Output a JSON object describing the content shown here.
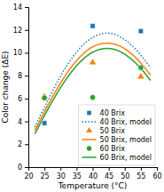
{
  "chart_data": {
    "type": "line",
    "xlabel": "Temperature (°C)",
    "ylabel": "Color change (ΔE)",
    "xlim": [
      20,
      60
    ],
    "ylim": [
      0,
      14
    ],
    "xticks": [
      20,
      25,
      30,
      35,
      40,
      45,
      50,
      55,
      60
    ],
    "yticks": [
      0,
      2,
      4,
      6,
      8,
      10,
      12,
      14
    ],
    "grid": false,
    "legend": "lower right",
    "series": [
      {
        "name": "40 Brix",
        "type": "scatter",
        "marker": "square",
        "color": "#1f77b4",
        "x": [
          25,
          40,
          55
        ],
        "values": [
          3.85,
          12.35,
          11.9
        ]
      },
      {
        "name": "40 Brix, model",
        "type": "line",
        "line_style": "dotted",
        "color": "#1f77b4",
        "x": [
          22,
          23,
          24,
          25,
          26,
          27,
          28,
          29,
          30,
          31,
          32,
          33,
          34,
          35,
          36,
          37,
          38,
          39,
          40,
          41,
          42,
          43,
          44,
          45,
          46,
          47,
          48,
          49,
          50,
          51,
          52,
          53,
          54,
          55,
          56,
          57,
          58
        ],
        "values": [
          3.5,
          4.1,
          4.7,
          5.2,
          5.8,
          6.35,
          6.9,
          7.45,
          7.95,
          8.45,
          8.9,
          9.3,
          9.7,
          10.05,
          10.4,
          10.7,
          10.95,
          11.15,
          11.35,
          11.5,
          11.6,
          11.68,
          11.72,
          11.72,
          11.68,
          11.6,
          11.48,
          11.33,
          11.15,
          10.95,
          10.7,
          10.43,
          10.13,
          9.8,
          9.45,
          9.08,
          8.68
        ]
      },
      {
        "name": "50 Brix",
        "type": "scatter",
        "marker": "triangle",
        "color": "#ff7f0e",
        "x": [
          25,
          40,
          55
        ],
        "values": [
          6.15,
          9.15,
          7.9
        ]
      },
      {
        "name": "50 Brix, model",
        "type": "line",
        "line_style": "solid",
        "color": "#ff7f0e",
        "x": [
          22,
          23,
          24,
          25,
          26,
          27,
          28,
          29,
          30,
          31,
          32,
          33,
          34,
          35,
          36,
          37,
          38,
          39,
          40,
          41,
          42,
          43,
          44,
          45,
          46,
          47,
          48,
          49,
          50,
          51,
          52,
          53,
          54,
          55,
          56,
          57,
          58
        ],
        "values": [
          3.2,
          3.75,
          4.3,
          4.85,
          5.38,
          5.9,
          6.4,
          6.88,
          7.35,
          7.8,
          8.22,
          8.62,
          8.98,
          9.32,
          9.63,
          9.9,
          10.15,
          10.35,
          10.52,
          10.65,
          10.75,
          10.82,
          10.85,
          10.85,
          10.82,
          10.75,
          10.65,
          10.52,
          10.35,
          10.16,
          9.93,
          9.68,
          9.4,
          9.1,
          8.77,
          8.42,
          8.05
        ]
      },
      {
        "name": "60 Brix",
        "type": "scatter",
        "marker": "circle",
        "color": "#2ca02c",
        "x": [
          25,
          40,
          55
        ],
        "values": [
          6.05,
          6.1,
          8.7
        ]
      },
      {
        "name": "60 Brix, model",
        "type": "line",
        "line_style": "solid",
        "color": "#2ca02c",
        "x": [
          22,
          23,
          24,
          25,
          26,
          27,
          28,
          29,
          30,
          31,
          32,
          33,
          34,
          35,
          36,
          37,
          38,
          39,
          40,
          41,
          42,
          43,
          44,
          45,
          46,
          47,
          48,
          49,
          50,
          51,
          52,
          53,
          54,
          55,
          56,
          57,
          58
        ],
        "values": [
          2.9,
          3.43,
          3.97,
          4.5,
          5.02,
          5.53,
          6.02,
          6.5,
          6.95,
          7.38,
          7.8,
          8.18,
          8.54,
          8.87,
          9.17,
          9.44,
          9.68,
          9.88,
          10.05,
          10.18,
          10.28,
          10.35,
          10.38,
          10.38,
          10.35,
          10.28,
          10.18,
          10.04,
          9.88,
          9.68,
          9.46,
          9.21,
          8.93,
          8.63,
          8.3,
          7.95,
          7.58
        ]
      }
    ]
  }
}
